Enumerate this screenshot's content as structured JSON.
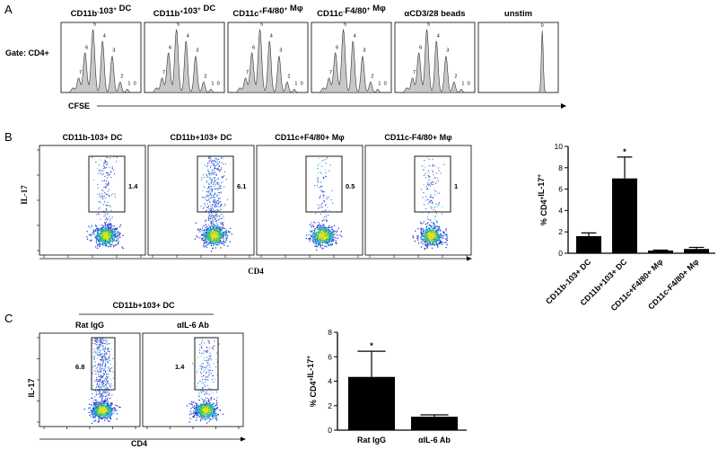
{
  "panel_a": {
    "letter": "A",
    "gate_label": "Gate: CD4+",
    "x_axis": "CFSE",
    "histograms": [
      {
        "title_main": "CD11b",
        "title_sup1": "-",
        "title_mid": "103",
        "title_sup2": "+",
        "title_end": " DC",
        "peaks": [
          "5",
          "4",
          "3",
          "2",
          "1",
          "0",
          "6",
          "7"
        ],
        "profile": "prolif"
      },
      {
        "title_main": "CD11b",
        "title_sup1": "+",
        "title_mid": "103",
        "title_sup2": "+",
        "title_end": " DC",
        "peaks": [
          "5",
          "4",
          "3",
          "2",
          "1",
          "0",
          "6",
          "7"
        ],
        "profile": "prolif"
      },
      {
        "title_main": "CD11c",
        "title_sup1": "+",
        "title_mid": "F4/80",
        "title_sup2": "+",
        "title_end": " Mφ",
        "peaks": [
          "5",
          "4",
          "3",
          "2",
          "1",
          "0",
          "6",
          "7"
        ],
        "profile": "prolif"
      },
      {
        "title_main": "CD11c",
        "title_sup1": "-",
        "title_mid": "F4/80",
        "title_sup2": "+",
        "title_end": " Mφ",
        "peaks": [
          "5",
          "4",
          "3",
          "2",
          "1",
          "0",
          "6",
          "7"
        ],
        "profile": "prolif"
      },
      {
        "title_main": "αCD3/28 beads",
        "title_sup1": "",
        "title_mid": "",
        "title_sup2": "",
        "title_end": "",
        "peaks": [
          "5",
          "4",
          "3",
          "2",
          "1",
          "0",
          "6",
          "7"
        ],
        "profile": "prolif"
      },
      {
        "title_main": "unstim",
        "title_sup1": "",
        "title_mid": "",
        "title_sup2": "",
        "title_end": "",
        "peaks": [
          "0"
        ],
        "profile": "single"
      }
    ]
  },
  "panel_b": {
    "letter": "B",
    "y_axis": "IL-17",
    "x_axis": "CD4",
    "plots": [
      {
        "title": "CD11b-103+ DC",
        "gate_value": "1.4",
        "density": 0.3
      },
      {
        "title": "CD11b+103+ DC",
        "gate_value": "6.1",
        "density": 1.0
      },
      {
        "title": "CD11c+F4/80+ Mφ",
        "gate_value": "0.5",
        "density": 0.1
      },
      {
        "title": "CD11c-F4/80+ Mφ",
        "gate_value": "1",
        "density": 0.2
      }
    ]
  },
  "panel_c": {
    "letter": "C",
    "group_header": "CD11b+103+ DC",
    "y_axis": "IL-17",
    "x_axis": "CD4",
    "plots": [
      {
        "title": "Rat IgG",
        "gate_value": "6.8",
        "density": 1.0
      },
      {
        "title": "αIL-6 Ab",
        "gate_value": "1.4",
        "density": 0.3
      }
    ]
  },
  "chart_data": [
    {
      "type": "bar",
      "title": "",
      "ylabel": "% CD4+IL-17+",
      "xlabel": "",
      "ylim": [
        0,
        10
      ],
      "yticks": [
        "0",
        "2",
        "4",
        "6",
        "8",
        "10"
      ],
      "categories": [
        "CD11b-103+ DC",
        "CD11b+103+ DC",
        "CD11c+F4/80+ Mφ",
        "CD11c-F4/80+ Mφ"
      ],
      "values": [
        1.6,
        7.0,
        0.25,
        0.4
      ],
      "errors": [
        0.3,
        2.0,
        0.05,
        0.15
      ],
      "significance": [
        "",
        "*",
        "",
        ""
      ]
    },
    {
      "type": "bar",
      "title": "",
      "ylabel": "% CD4+IL-17+",
      "xlabel": "",
      "ylim": [
        0,
        8
      ],
      "yticks": [
        "0",
        "2",
        "4",
        "6",
        "8"
      ],
      "categories": [
        "Rat IgG",
        "αIL-6 Ab"
      ],
      "values": [
        4.35,
        1.1
      ],
      "errors": [
        2.1,
        0.15
      ],
      "significance": [
        "*",
        ""
      ]
    }
  ],
  "colors": {
    "histogram_fill": "#c8c8c8",
    "bar_fill": "#000000",
    "density_low": "#2a3cd0",
    "density_mid": "#20c8d8",
    "density_high": "#e8e020",
    "density_peak": "#40d040"
  }
}
